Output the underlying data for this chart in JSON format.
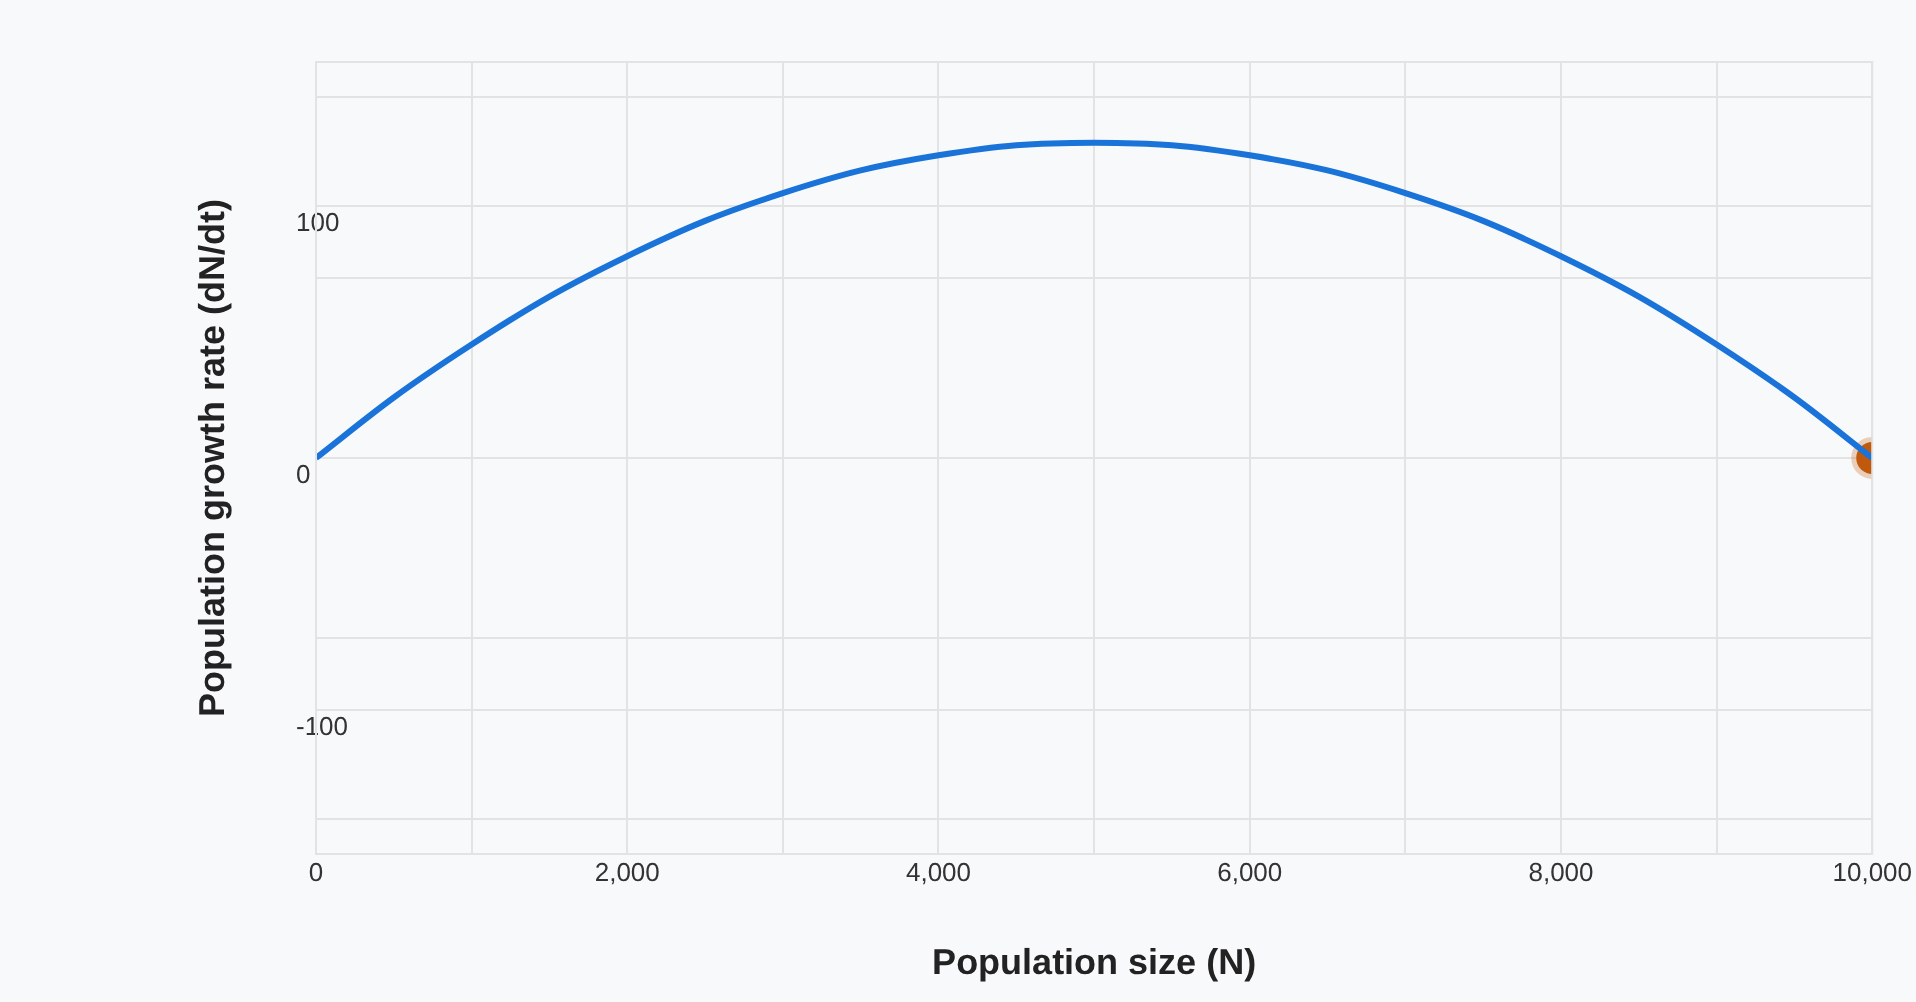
{
  "chart_data": {
    "type": "line",
    "xlabel": "Population size (N)",
    "ylabel": "Population growth rate (dN/dt)",
    "xlim": [
      0,
      10000
    ],
    "ylim": [
      -157,
      157
    ],
    "xticks": [
      0,
      {
        "value": 1000,
        "label": null
      },
      {
        "value": 2000,
        "label": "2,000"
      },
      {
        "value": 3000,
        "label": null
      },
      {
        "value": 4000,
        "label": "4,000"
      },
      {
        "value": 5000,
        "label": null
      },
      {
        "value": 6000,
        "label": "6,000"
      },
      {
        "value": 7000,
        "label": null
      },
      {
        "value": 8000,
        "label": "8,000"
      },
      {
        "value": 9000,
        "label": null
      },
      {
        "value": 10000,
        "label": "10,000"
      }
    ],
    "yticks": [
      {
        "value": -143,
        "label": null
      },
      -100,
      {
        "value": -71.5,
        "label": null
      },
      0,
      {
        "value": 71.5,
        "label": null
      },
      100,
      {
        "value": 143,
        "label": null
      }
    ],
    "grid": true,
    "legend": false,
    "marker": "none",
    "series": [
      {
        "type": "line",
        "color": "#1a73d9",
        "x": [
          0,
          500,
          1000,
          1500,
          2000,
          2500,
          3000,
          3500,
          4000,
          4500,
          5000,
          5500,
          6000,
          6500,
          7000,
          7500,
          8000,
          8500,
          9000,
          9500,
          10000
        ],
        "values": [
          0,
          24,
          45,
          64,
          80,
          94,
          105,
          114,
          120,
          124,
          125,
          124,
          120,
          114,
          105,
          94,
          80,
          64,
          45,
          24,
          0
        ]
      },
      {
        "type": "scatter",
        "color": "#c0590c",
        "marker": "circle",
        "x": [
          10000
        ],
        "values": [
          0
        ]
      }
    ]
  }
}
